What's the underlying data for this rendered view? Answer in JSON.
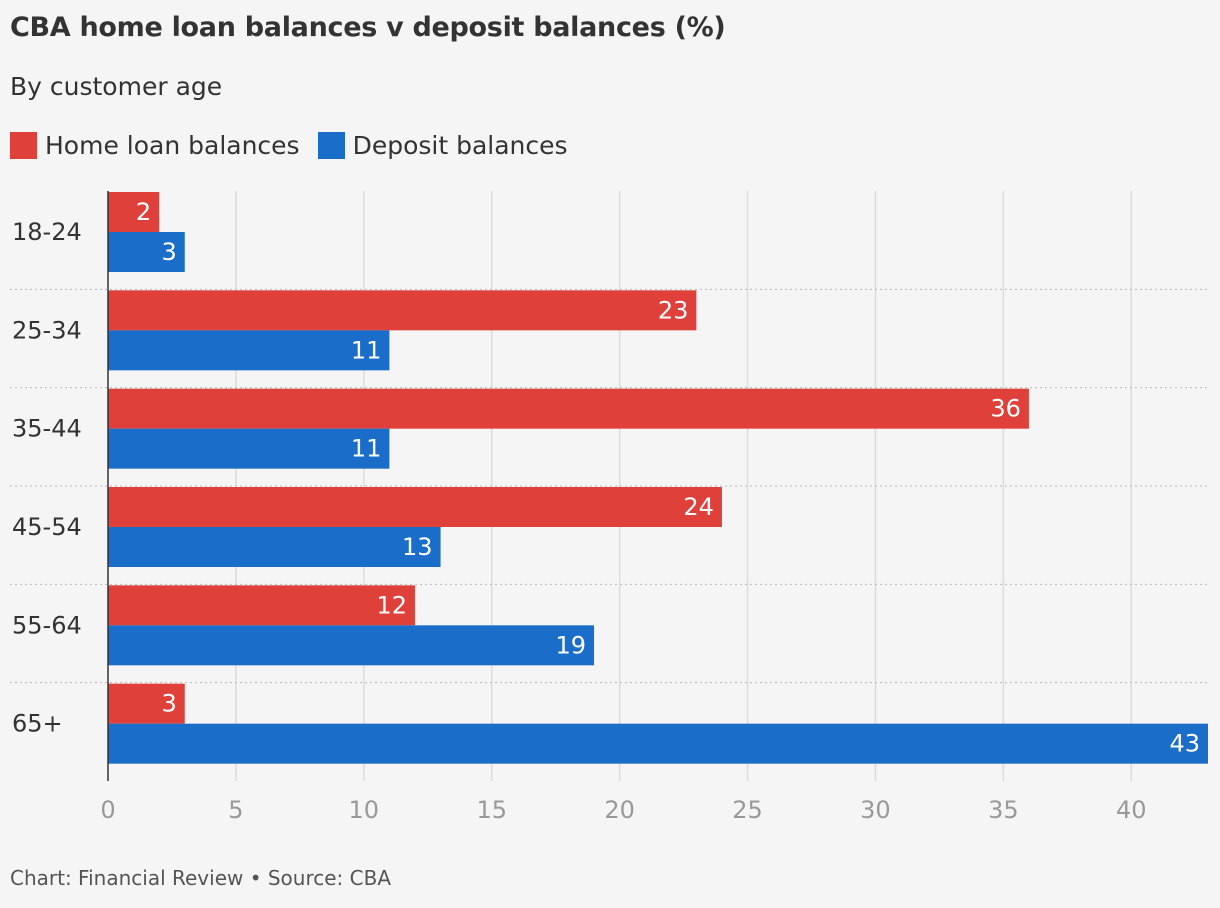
{
  "chart_data": {
    "type": "bar",
    "orientation": "horizontal",
    "title": "CBA home loan balances v deposit balances (%)",
    "subtitle": "By customer age",
    "categories": [
      "18-24",
      "25-34",
      "35-44",
      "45-54",
      "55-64",
      "65+"
    ],
    "series": [
      {
        "name": "Home loan balances",
        "color": "#e0403a",
        "values": [
          2,
          23,
          36,
          24,
          12,
          3
        ]
      },
      {
        "name": "Deposit balances",
        "color": "#1a6ec9",
        "values": [
          3,
          11,
          11,
          13,
          19,
          43
        ]
      }
    ],
    "x_ticks": [
      "0",
      "5",
      "10",
      "15",
      "20",
      "25",
      "30",
      "35",
      "40"
    ],
    "xlim": [
      0,
      43
    ],
    "grid": true,
    "legend_position": "top-left",
    "source": "Chart: Financial Review • Source: CBA"
  }
}
